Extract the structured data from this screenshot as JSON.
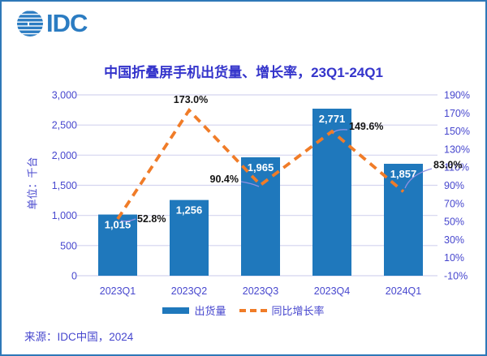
{
  "logo": {
    "text": "IDC"
  },
  "title": "中国折叠屏手机出货量、增长率，23Q1-24Q1",
  "source": "来源：IDC中国，2024",
  "colors": {
    "bar": "#1F78BC",
    "line": "#F07C28",
    "text_blue": "#4747CE",
    "title_blue": "#3434CB",
    "grid": "#D4D4EF",
    "label_dark": "#141414",
    "border": "#2E78B8",
    "logo_blue": "#2B7CC2",
    "leader": "#9090E0",
    "bar_label": "#FFFFFF"
  },
  "chart_data": {
    "type": "bar",
    "title": "中国折叠屏手机出货量、增长率，23Q1-24Q1",
    "categories": [
      "2023Q1",
      "2023Q2",
      "2023Q3",
      "2023Q4",
      "2024Q1"
    ],
    "series": [
      {
        "name": "出货量",
        "type": "bar",
        "axis": "left",
        "values": [
          1015,
          1256,
          1965,
          2771,
          1857
        ],
        "labels": [
          "1,015",
          "1,256",
          "1,965",
          "2,771",
          "1,857"
        ]
      },
      {
        "name": "同比增长率",
        "type": "line",
        "style": "dashed",
        "axis": "right",
        "values": [
          52.8,
          173.0,
          90.4,
          149.6,
          83.0
        ],
        "labels": [
          "52.8%",
          "173.0%",
          "90.4%",
          "149.6%",
          "83.0%"
        ]
      }
    ],
    "ylabel": "单位：千台",
    "xlabel": "",
    "ylim": [
      0,
      3000
    ],
    "y_ticks": {
      "values": [
        0,
        500,
        1000,
        1500,
        2000,
        2500,
        3000
      ],
      "labels": [
        "0",
        "500",
        "1,000",
        "1,500",
        "2,000",
        "2,500",
        "3,000"
      ]
    },
    "y2lim": [
      -10,
      190
    ],
    "y2_ticks": {
      "values": [
        -10,
        10,
        30,
        50,
        70,
        90,
        110,
        130,
        150,
        170,
        190
      ],
      "labels": [
        "-10%",
        "10%",
        "30%",
        "50%",
        "70%",
        "90%",
        "110%",
        "130%",
        "150%",
        "170%",
        "190%"
      ]
    },
    "grid": true,
    "legend_position": "bottom"
  }
}
